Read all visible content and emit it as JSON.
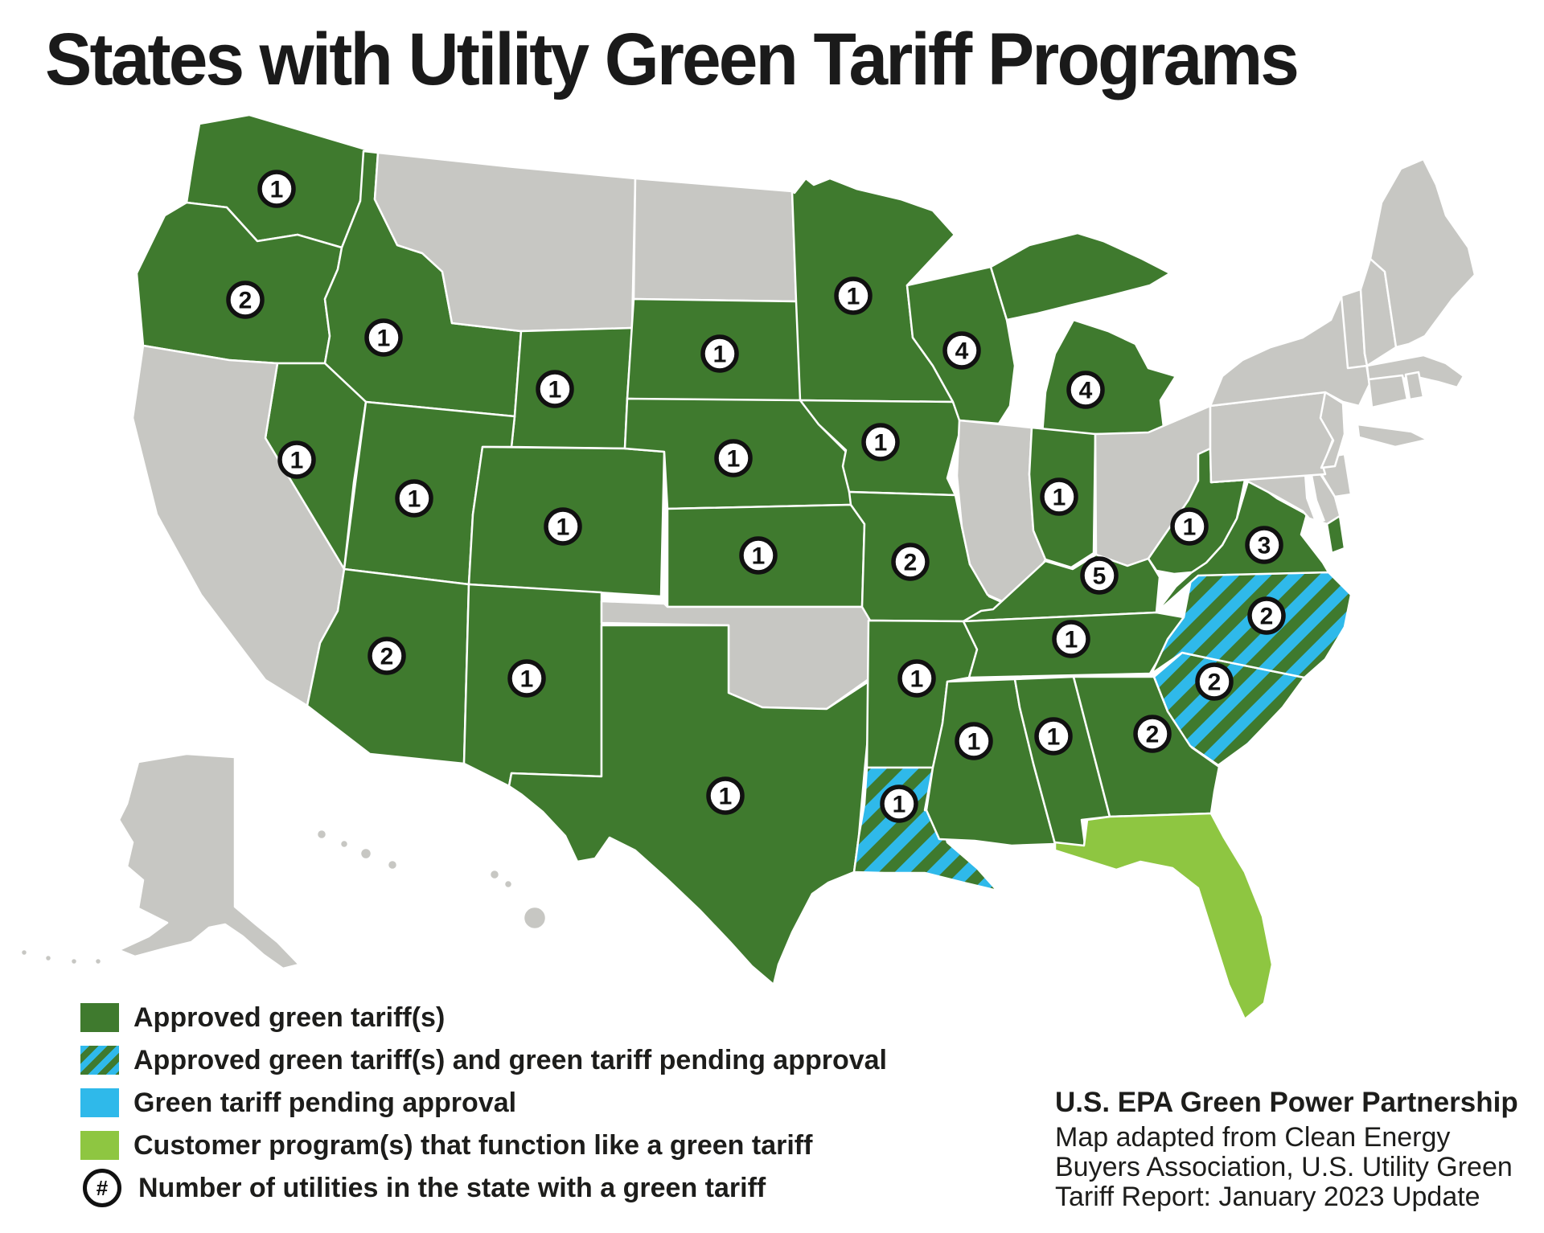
{
  "title": "States with Utility Green Tariff Programs",
  "colors": {
    "approved": "#3F7A2E",
    "pending": "#2FB9EA",
    "customer_program": "#8EC641",
    "no_program": "#C7C7C3",
    "state_border": "#FFFFFF",
    "background": "#FFFFFF",
    "badge_fill": "#FFFFFF",
    "badge_ring": "#111111",
    "text": "#1D1D1B"
  },
  "legend": {
    "items": [
      {
        "key": "approved",
        "label": "Approved green tariff(s)"
      },
      {
        "key": "approved_and_pending",
        "label": "Approved green tariff(s) and green tariff pending approval"
      },
      {
        "key": "pending",
        "label": "Green tariff pending approval"
      },
      {
        "key": "customer_program",
        "label": "Customer program(s) that function like a green tariff"
      },
      {
        "key": "utilities_count",
        "symbol": "#",
        "label": "Number of utilities in the state with a green tariff"
      }
    ]
  },
  "attribution": {
    "heading": "U.S. EPA Green Power Partnership",
    "lines": [
      "Map adapted from Clean Energy",
      "Buyers Association, U.S. Utility Green",
      "Tariff Report: January 2023 Update"
    ]
  },
  "map": {
    "states": [
      {
        "id": "WA",
        "name": "Washington",
        "category": "approved",
        "utilities": 1
      },
      {
        "id": "OR",
        "name": "Oregon",
        "category": "approved",
        "utilities": 2
      },
      {
        "id": "ID",
        "name": "Idaho",
        "category": "approved",
        "utilities": 1
      },
      {
        "id": "MT",
        "name": "Montana",
        "category": "no_program",
        "utilities": null
      },
      {
        "id": "WY",
        "name": "Wyoming",
        "category": "approved",
        "utilities": 1
      },
      {
        "id": "NV",
        "name": "Nevada",
        "category": "approved",
        "utilities": 1
      },
      {
        "id": "UT",
        "name": "Utah",
        "category": "approved",
        "utilities": 1
      },
      {
        "id": "CO",
        "name": "Colorado",
        "category": "approved",
        "utilities": 1
      },
      {
        "id": "AZ",
        "name": "Arizona",
        "category": "approved",
        "utilities": 2
      },
      {
        "id": "NM",
        "name": "New Mexico",
        "category": "approved",
        "utilities": 1
      },
      {
        "id": "CA",
        "name": "California",
        "category": "no_program",
        "utilities": null
      },
      {
        "id": "ND",
        "name": "North Dakota",
        "category": "no_program",
        "utilities": null
      },
      {
        "id": "SD",
        "name": "South Dakota",
        "category": "approved",
        "utilities": 1
      },
      {
        "id": "NE",
        "name": "Nebraska",
        "category": "approved",
        "utilities": 1
      },
      {
        "id": "KS",
        "name": "Kansas",
        "category": "approved",
        "utilities": 1
      },
      {
        "id": "OK",
        "name": "Oklahoma",
        "category": "no_program",
        "utilities": null
      },
      {
        "id": "TX",
        "name": "Texas",
        "category": "approved",
        "utilities": 1
      },
      {
        "id": "MN",
        "name": "Minnesota",
        "category": "approved",
        "utilities": 1
      },
      {
        "id": "IA",
        "name": "Iowa",
        "category": "approved",
        "utilities": 1
      },
      {
        "id": "MO",
        "name": "Missouri",
        "category": "approved",
        "utilities": 2
      },
      {
        "id": "AR",
        "name": "Arkansas",
        "category": "approved",
        "utilities": 1
      },
      {
        "id": "LA",
        "name": "Louisiana",
        "category": "approved_and_pending",
        "utilities": 1
      },
      {
        "id": "WI",
        "name": "Wisconsin",
        "category": "approved",
        "utilities": 4
      },
      {
        "id": "MI",
        "name": "Michigan",
        "category": "approved",
        "utilities": 4
      },
      {
        "id": "IL",
        "name": "Illinois",
        "category": "no_program",
        "utilities": null
      },
      {
        "id": "IN",
        "name": "Indiana",
        "category": "approved",
        "utilities": 1
      },
      {
        "id": "OH",
        "name": "Ohio",
        "category": "no_program",
        "utilities": null
      },
      {
        "id": "KY",
        "name": "Kentucky",
        "category": "approved",
        "utilities": 5
      },
      {
        "id": "TN",
        "name": "Tennessee",
        "category": "approved",
        "utilities": 1
      },
      {
        "id": "MS",
        "name": "Mississippi",
        "category": "approved",
        "utilities": 1
      },
      {
        "id": "AL",
        "name": "Alabama",
        "category": "approved",
        "utilities": 1
      },
      {
        "id": "GA",
        "name": "Georgia",
        "category": "approved",
        "utilities": 2
      },
      {
        "id": "FL",
        "name": "Florida",
        "category": "customer_program",
        "utilities": null
      },
      {
        "id": "SC",
        "name": "South Carolina",
        "category": "approved_and_pending",
        "utilities": 2
      },
      {
        "id": "NC",
        "name": "North Carolina",
        "category": "approved_and_pending",
        "utilities": 2
      },
      {
        "id": "VA",
        "name": "Virginia",
        "category": "approved",
        "utilities": 3
      },
      {
        "id": "WV",
        "name": "West Virginia",
        "category": "approved",
        "utilities": 1
      },
      {
        "id": "MD",
        "name": "Maryland",
        "category": "no_program",
        "utilities": null
      },
      {
        "id": "DE",
        "name": "Delaware",
        "category": "no_program",
        "utilities": null
      },
      {
        "id": "PA",
        "name": "Pennsylvania",
        "category": "no_program",
        "utilities": null
      },
      {
        "id": "NY",
        "name": "New York",
        "category": "no_program",
        "utilities": null
      },
      {
        "id": "NJ",
        "name": "New Jersey",
        "category": "no_program",
        "utilities": null
      },
      {
        "id": "CT",
        "name": "Connecticut",
        "category": "no_program",
        "utilities": null
      },
      {
        "id": "RI",
        "name": "Rhode Island",
        "category": "no_program",
        "utilities": null
      },
      {
        "id": "MA",
        "name": "Massachusetts",
        "category": "no_program",
        "utilities": null
      },
      {
        "id": "VT",
        "name": "Vermont",
        "category": "no_program",
        "utilities": null
      },
      {
        "id": "NH",
        "name": "New Hampshire",
        "category": "no_program",
        "utilities": null
      },
      {
        "id": "ME",
        "name": "Maine",
        "category": "no_program",
        "utilities": null
      },
      {
        "id": "AK",
        "name": "Alaska",
        "category": "no_program",
        "utilities": null
      },
      {
        "id": "HI",
        "name": "Hawaii",
        "category": "no_program",
        "utilities": null
      }
    ]
  }
}
